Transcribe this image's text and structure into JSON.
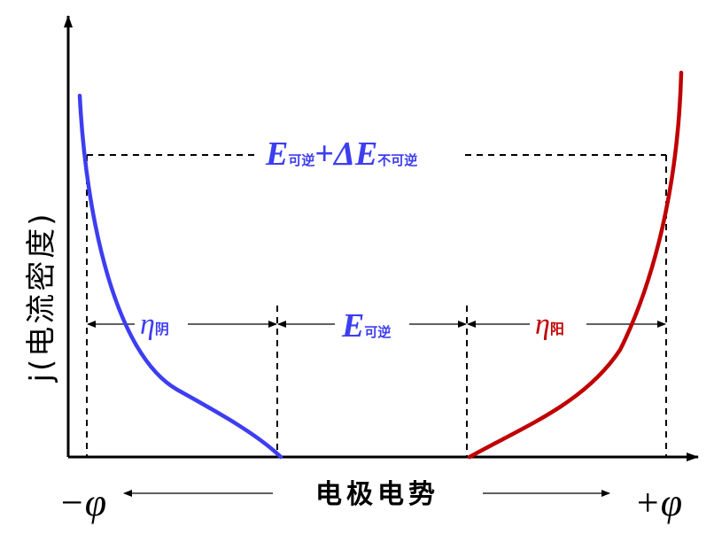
{
  "axes": {
    "y_label": "j(电流密度)",
    "x_label": "电极电势",
    "left_label": "−φ",
    "right_label": "+φ"
  },
  "annotations": {
    "top_total": {
      "main": "E",
      "sub1": "可逆",
      "plus": "+",
      "delta": "ΔE",
      "sub2": "不可逆"
    },
    "eta_cathode": {
      "symbol": "η",
      "sub": "阴"
    },
    "e_reversible": {
      "symbol": "E",
      "sub": "可逆"
    },
    "eta_anode": {
      "symbol": "η",
      "sub": "阳"
    }
  },
  "colors": {
    "cathode_curve": "#3d3df2",
    "anode_curve": "#c00000",
    "label_blue": "#3d3df2",
    "label_red": "#c00000",
    "axis": "#000000"
  }
}
